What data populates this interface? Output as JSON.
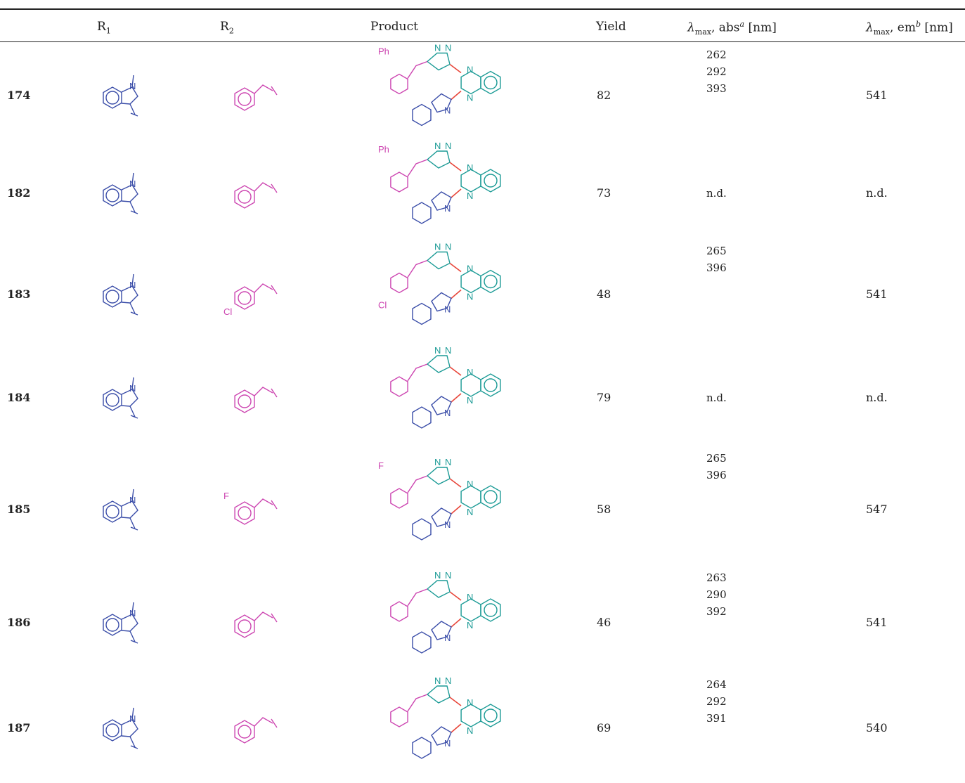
{
  "caption": "",
  "header": {
    "r1": "R",
    "r1_sub": "1",
    "r2": "R",
    "r2_sub": "2",
    "product": "Product",
    "yield": "Yield",
    "abs_lambda": "λ",
    "abs_sub": "max",
    "abs_rest": ", abs",
    "abs_sup": "a",
    "abs_unit": " [nm]",
    "em_lambda": "λ",
    "em_sub": "max",
    "em_rest": ", em",
    "em_sup": "b",
    "em_unit": " [nm]"
  },
  "rows": [
    {
      "id": "174",
      "yield": "82",
      "abs": [
        "262",
        "292",
        "393"
      ],
      "em": "541",
      "product_label": "Ph"
    },
    {
      "id": "182",
      "yield": "73",
      "abs": [
        "n.d."
      ],
      "em": "n.d.",
      "product_label": "Ph"
    },
    {
      "id": "183",
      "yield": "48",
      "abs": [
        "265",
        "396"
      ],
      "em": "541",
      "r2_label": "Cl",
      "product_label": "Cl"
    },
    {
      "id": "184",
      "yield": "79",
      "abs": [
        "n.d."
      ],
      "em": "n.d."
    },
    {
      "id": "185",
      "yield": "58",
      "abs": [
        "265",
        "396"
      ],
      "em": "547",
      "r2_label": "F",
      "product_label": "F"
    },
    {
      "id": "186",
      "yield": "46",
      "abs": [
        "263",
        "290",
        "392"
      ],
      "em": "541"
    },
    {
      "id": "187",
      "yield": "69",
      "abs": [
        "264",
        "292",
        "391"
      ],
      "em": "540"
    }
  ],
  "atoms": {
    "n": "N"
  },
  "colors": {
    "r1": "#3a4da8",
    "r2": "#cc44b0",
    "core": "#1a9a95",
    "bond": "#e8463a"
  }
}
